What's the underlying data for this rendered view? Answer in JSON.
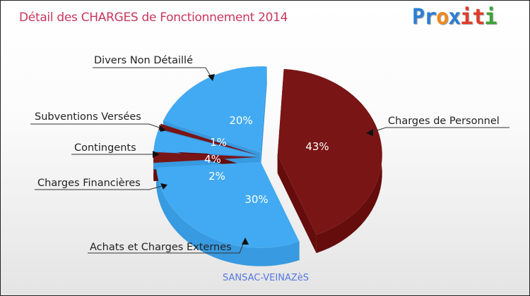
{
  "title": "Détail des CHARGES de Fonctionnement 2014",
  "logo": {
    "letters": [
      "P",
      "r",
      "o",
      "x",
      "i",
      "t",
      "i"
    ],
    "colors": [
      "#2a7fd4",
      "#2a7fd4",
      "#f08a1c",
      "#2a7fd4",
      "#e03b2a",
      "#e03b2a",
      "#3aa33a"
    ]
  },
  "footer": "SANSAC-VEINAZèS",
  "chart_data": {
    "type": "pie",
    "title": "Détail des CHARGES de Fonctionnement 2014",
    "slices": [
      {
        "label": "Charges de Personnel",
        "value": 43,
        "pct_label": "43%",
        "color": "#7a1515",
        "side": "#650c0c"
      },
      {
        "label": "Achats et Charges Externes",
        "value": 30,
        "pct_label": "30%",
        "color": "#42aaf2",
        "side": "#389ae0"
      },
      {
        "label": "Charges Financières",
        "value": 2,
        "pct_label": "2%",
        "color": "#7a1515",
        "side": "#650c0c"
      },
      {
        "label": "Contingents",
        "value": 4,
        "pct_label": "4%",
        "color": "#42aaf2",
        "side": "#389ae0"
      },
      {
        "label": "Subventions Versées",
        "value": 1,
        "pct_label": "1%",
        "color": "#7a1515",
        "side": "#650c0c"
      },
      {
        "label": "Divers Non Détaillé",
        "value": 20,
        "pct_label": "20%",
        "color": "#42aaf2",
        "side": "#389ae0"
      }
    ]
  }
}
